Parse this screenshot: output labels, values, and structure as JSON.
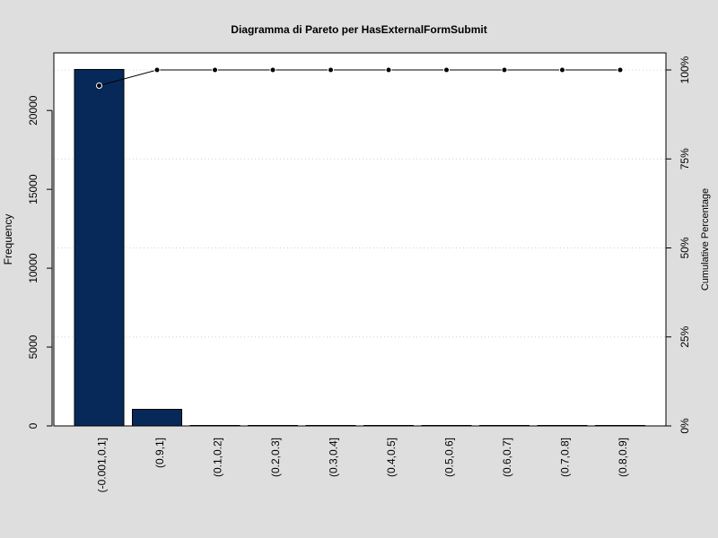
{
  "chart_data": {
    "type": "bar",
    "title": "Diagramma di Pareto per HasExternalFormSubmit",
    "xlabel": "",
    "ylabel": "Frequency",
    "ylabel_right": "Cumulative Percentage",
    "categories": [
      "(-0.001,0.1]",
      "(0.9,1]",
      "(0.1,0.2]",
      "(0.2,0.3]",
      "(0.3,0.4]",
      "(0.4,0.5]",
      "(0.5,0.6]",
      "(0.6,0.7]",
      "(0.7,0.8]",
      "(0.8,0.9]"
    ],
    "values": [
      22600,
      1050,
      0,
      0,
      0,
      0,
      0,
      0,
      0,
      0
    ],
    "cumulative_percent": [
      95.6,
      100,
      100,
      100,
      100,
      100,
      100,
      100,
      100,
      100
    ],
    "ylim": [
      0,
      23650
    ],
    "y_ticks": [
      0,
      5000,
      10000,
      15000,
      20000
    ],
    "y_tick_labels": [
      "0",
      "5000",
      "10000",
      "15000",
      "20000"
    ],
    "y2_ticks": [
      0,
      25,
      50,
      75,
      100
    ],
    "y2_tick_labels": [
      "0%",
      "25%",
      "50%",
      "75%",
      "100%"
    ],
    "grid": true,
    "colors": {
      "bar": "#07295a",
      "bar_border": "#000000",
      "line": "#000000",
      "grid": "#d0d0d0",
      "plot_bg": "#ffffff",
      "page_bg": "#dedede"
    }
  }
}
